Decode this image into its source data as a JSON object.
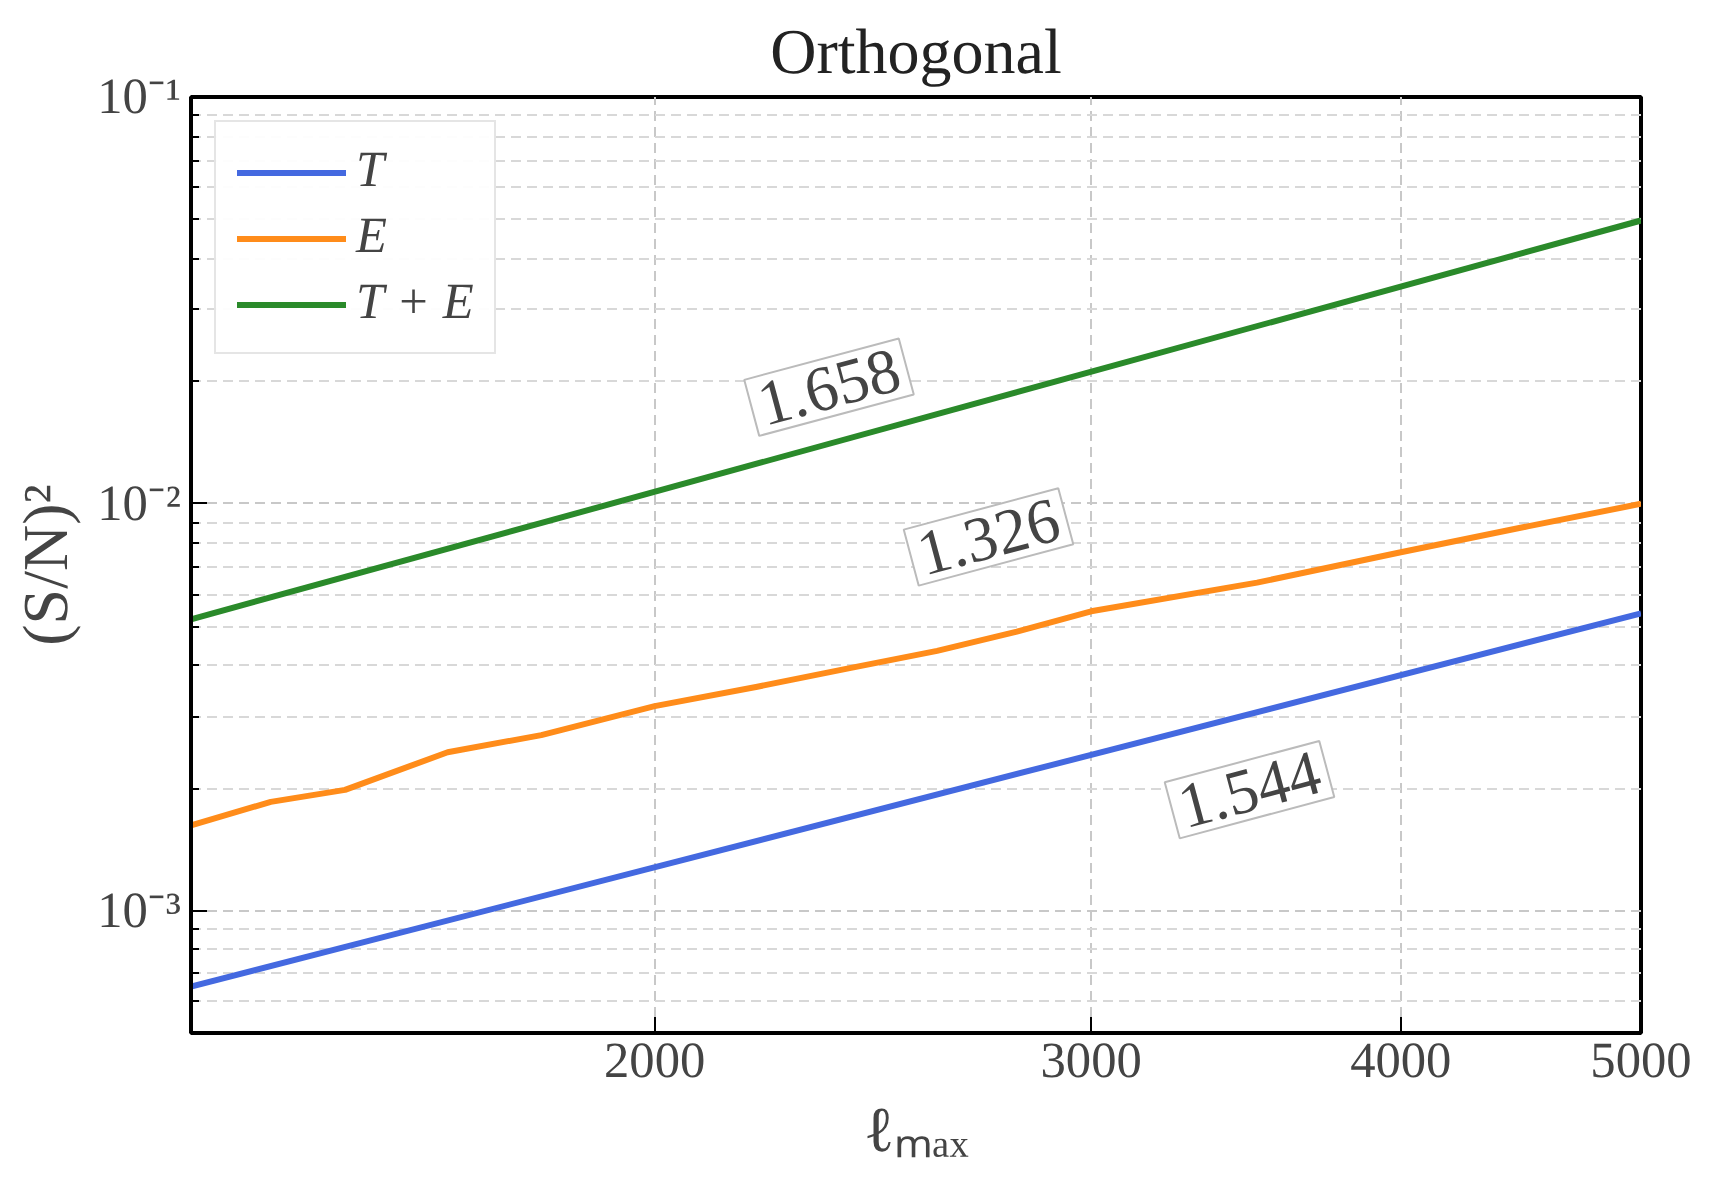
{
  "chart_data": {
    "type": "line",
    "title": "Orthogonal",
    "xlabel": "ℓₘₐₓ",
    "ylabel": "(S/N)²",
    "log": "xy",
    "grid": true,
    "legend": "top left",
    "line_style": "solid",
    "xlim": [
      1300,
      5000
    ],
    "ylim": [
      0.0005,
      0.1
    ],
    "xticks": [
      2000,
      3000,
      4000,
      5000
    ],
    "yticks": [
      {
        "value": 0.001,
        "label": "10⁻³"
      },
      {
        "value": 0.01,
        "label": "10⁻²"
      },
      {
        "value": 0.1,
        "label": "10⁻¹"
      }
    ],
    "series": [
      {
        "name": "T",
        "color": "#4469e0",
        "x": [
          1300,
          5000
        ],
        "values": [
          0.00065,
          0.00538
        ]
      },
      {
        "name": "E",
        "color": "#ff8c1a",
        "x": [
          1300,
          1400,
          1500,
          1650,
          1800,
          2000,
          2200,
          2400,
          2600,
          2800,
          3000,
          3500,
          4000,
          4500,
          5000
        ],
        "values": [
          0.00162,
          0.00185,
          0.00198,
          0.00245,
          0.0027,
          0.00318,
          0.00355,
          0.00395,
          0.00435,
          0.00485,
          0.00544,
          0.0064,
          0.0076,
          0.0088,
          0.01
        ]
      },
      {
        "name": "T + E",
        "color": "#2a8a2a",
        "x": [
          1300,
          5000
        ],
        "values": [
          0.0052,
          0.0497
        ]
      }
    ],
    "annotations": [
      "1.658",
      "1.326",
      "1.544"
    ]
  }
}
